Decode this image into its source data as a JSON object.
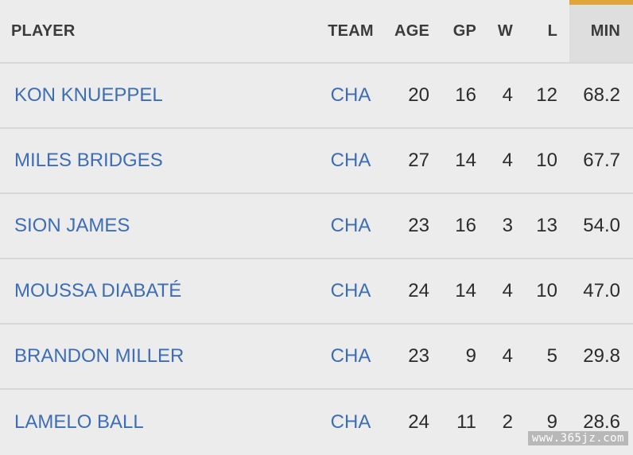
{
  "accent_color": "#e0a53a",
  "link_color": "#3d6db5",
  "table": {
    "columns": {
      "player": "PLAYER",
      "team": "TEAM",
      "age": "AGE",
      "gp": "GP",
      "w": "W",
      "l": "L",
      "min": "MIN"
    },
    "sorted_column": "MIN",
    "rows": [
      {
        "player": "KON KNUEPPEL",
        "team": "CHA",
        "age": "20",
        "gp": "16",
        "w": "4",
        "l": "12",
        "min": "68.2"
      },
      {
        "player": "MILES BRIDGES",
        "team": "CHA",
        "age": "27",
        "gp": "14",
        "w": "4",
        "l": "10",
        "min": "67.7"
      },
      {
        "player": "SION JAMES",
        "team": "CHA",
        "age": "23",
        "gp": "16",
        "w": "3",
        "l": "13",
        "min": "54.0"
      },
      {
        "player": "MOUSSA DIABATÉ",
        "team": "CHA",
        "age": "24",
        "gp": "14",
        "w": "4",
        "l": "10",
        "min": "47.0"
      },
      {
        "player": "BRANDON MILLER",
        "team": "CHA",
        "age": "23",
        "gp": "9",
        "w": "4",
        "l": "5",
        "min": "29.8"
      },
      {
        "player": "LAMELO BALL",
        "team": "CHA",
        "age": "24",
        "gp": "11",
        "w": "2",
        "l": "9",
        "min": "28.6"
      }
    ]
  },
  "watermark": "www.365jz.com"
}
